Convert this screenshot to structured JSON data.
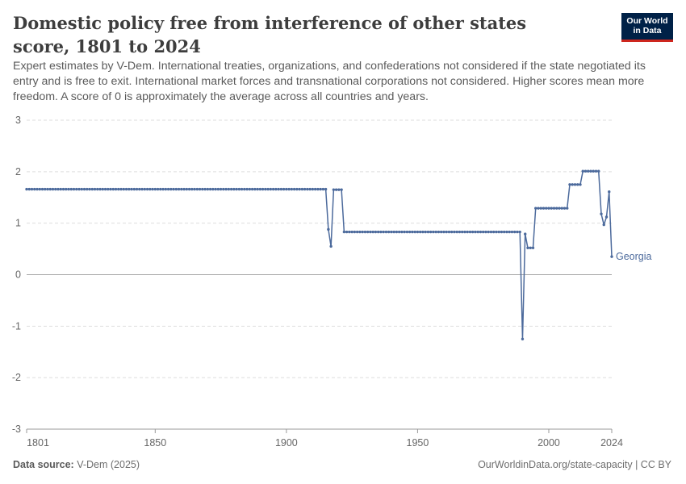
{
  "header": {
    "title": "Domestic policy free from interference of other states score, 1801 to 2024",
    "subtitle": "Expert estimates by V-Dem. International treaties, organizations, and confederations not considered if the state negotiated its entry and is free to exit. International market forces and transnational corporations not considered. Higher scores mean more freedom. A score of 0 is approximately the average across all countries and years.",
    "logo_line1": "Our World",
    "logo_line2": "in Data"
  },
  "footer": {
    "source_label": "Data source:",
    "source_value": "V-Dem (2025)",
    "url": "OurWorldinData.org/state-capacity | CC BY"
  },
  "colors": {
    "series": "#4c6a9c",
    "grid": "#dddddd",
    "zero_line": "#a8a8a8",
    "axis_text": "#666666",
    "logo_bg": "#002147",
    "logo_accent": "#ce261e"
  },
  "chart_data": {
    "type": "line",
    "xlim": [
      1801,
      2024
    ],
    "ylim": [
      -3,
      3
    ],
    "x_ticks": [
      1801,
      1850,
      1900,
      1950,
      2000,
      2024
    ],
    "y_ticks": [
      3,
      2,
      1,
      0,
      -1,
      -2,
      -3
    ],
    "grid": "horizontal dashed",
    "legend": "inline label at line end",
    "series": [
      {
        "name": "Georgia",
        "segments": [
          {
            "from": 1801,
            "to": 1915,
            "value": 1.66
          },
          {
            "year": 1916,
            "value": 0.88
          },
          {
            "year": 1917,
            "value": 0.55
          },
          {
            "from": 1918,
            "to": 1921,
            "value": 1.65
          },
          {
            "from": 1922,
            "to": 1989,
            "value": 0.83
          },
          {
            "year": 1990,
            "value": -1.25
          },
          {
            "year": 1991,
            "value": 0.79
          },
          {
            "from": 1992,
            "to": 1994,
            "value": 0.52
          },
          {
            "from": 1995,
            "to": 2007,
            "value": 1.29
          },
          {
            "from": 2008,
            "to": 2012,
            "value": 1.75
          },
          {
            "from": 2013,
            "to": 2019,
            "value": 2.01
          },
          {
            "year": 2020,
            "value": 1.18
          },
          {
            "year": 2021,
            "value": 0.97
          },
          {
            "year": 2022,
            "value": 1.12
          },
          {
            "year": 2023,
            "value": 1.61
          },
          {
            "year": 2024,
            "value": 0.35
          }
        ]
      }
    ]
  }
}
